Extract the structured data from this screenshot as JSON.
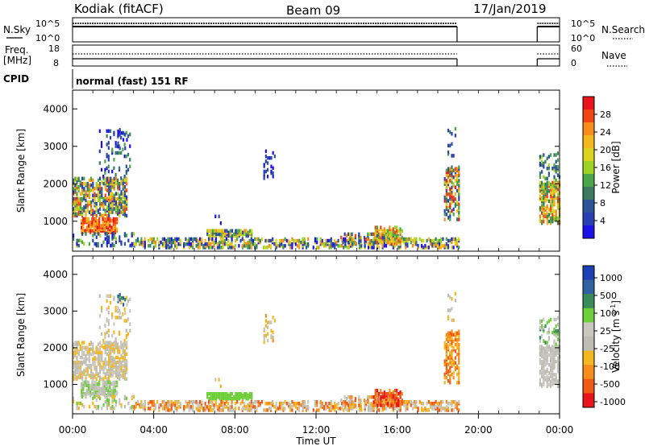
{
  "header": {
    "station": "Kodiak (fitACF)",
    "beam": "Beam 09",
    "date": "17/Jan/2019"
  },
  "nsky_panel": {
    "left_label": "N.Sky",
    "right_label": "N.Search",
    "left_ticks": [
      "10^5",
      "10^0"
    ],
    "right_ticks": [
      "10^5",
      "10^0"
    ]
  },
  "freq_panel": {
    "left_label_1": "Freq.",
    "left_label_2": "[MHz]",
    "right_label": "Nave",
    "left_ticks": [
      "18",
      "8"
    ],
    "right_ticks": [
      "60",
      "0"
    ]
  },
  "cpid": {
    "label": "CPID",
    "value": "normal (fast) 151 RF"
  },
  "chart_data": [
    {
      "type": "heatmap",
      "title": "",
      "quantity": "Power",
      "colorbar_label": "Power [dB]",
      "colorbar_ticks": [
        "28",
        "24",
        "20",
        "16",
        "12",
        "8",
        "4"
      ],
      "colorbar_colors": [
        "#e8141c",
        "#ef4515",
        "#f58c1b",
        "#f5b721",
        "#d9d31f",
        "#9ed324",
        "#4ba649",
        "#3a7b61",
        "#2c5499",
        "#2b3fb4",
        "#1d12e6"
      ],
      "xlabel": "",
      "ylabel": "Slant Range [km]",
      "y_ticks": [
        "1000",
        "2000",
        "3000",
        "4000"
      ],
      "ylim": [
        200,
        4500
      ],
      "xlim": [
        0,
        24
      ],
      "x_ticks": [],
      "echo_regions_note": "scatter at ~600-2000 km 00:00-03:00, isolated echoes 08:00-10:00, near-range scatter 06:00-19:00, echoes ~1000-2500 km 18:00-19:00 and 23:00-24:00"
    },
    {
      "type": "heatmap",
      "title": "",
      "quantity": "Velocity",
      "colorbar_label": "Velocity [m s^-1]",
      "colorbar_ticks": [
        "1000",
        "500",
        "100",
        "25",
        "-25",
        "-100",
        "-500",
        "-1000"
      ],
      "colorbar_colors": [
        "#1d3fb4",
        "#2e62a0",
        "#3a8a5a",
        "#6fcf3b",
        "#c8c8c0",
        "#bdbdb4",
        "#f5b721",
        "#f58c1b",
        "#ef5a15",
        "#e8141c"
      ],
      "xlabel": "Time UT",
      "ylabel": "Slant Range [km]",
      "y_ticks": [
        "1000",
        "2000",
        "3000",
        "4000"
      ],
      "ylim": [
        200,
        4500
      ],
      "xlim": [
        0,
        24
      ],
      "x_ticks": [
        "00:00",
        "04:00",
        "08:00",
        "12:00",
        "16:00",
        "20:00",
        "00:00"
      ]
    }
  ]
}
